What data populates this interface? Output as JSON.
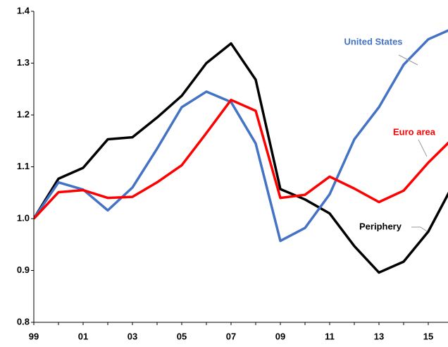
{
  "chart_data": {
    "type": "line",
    "categories": [
      "99",
      null,
      "01",
      null,
      "03",
      null,
      "05",
      null,
      "07",
      null,
      "09",
      null,
      "11",
      null,
      "13",
      null,
      "15",
      null
    ],
    "series": [
      {
        "name": "Periphery",
        "color": "#000000",
        "label_color": "#000000",
        "values": [
          1.0,
          1.077,
          1.098,
          1.153,
          1.157,
          1.195,
          1.237,
          1.3,
          1.338,
          1.268,
          1.057,
          1.037,
          1.01,
          0.947,
          0.896,
          0.917,
          0.975,
          1.065
        ]
      },
      {
        "name": "United States",
        "color": "#4472c4",
        "label_color": "#4472c4",
        "values": [
          1.0,
          1.07,
          1.056,
          1.016,
          1.06,
          1.135,
          1.215,
          1.245,
          1.225,
          1.145,
          0.957,
          0.982,
          1.047,
          1.153,
          1.215,
          1.297,
          1.346,
          1.367
        ]
      },
      {
        "name": "Euro area",
        "color": "#ff0000",
        "label_color": "#ff0000",
        "values": [
          1.0,
          1.051,
          1.055,
          1.04,
          1.042,
          1.07,
          1.103,
          1.165,
          1.229,
          1.208,
          1.04,
          1.046,
          1.081,
          1.058,
          1.032,
          1.054,
          1.108,
          1.155
        ]
      }
    ],
    "ylim": [
      0.8,
      1.4
    ],
    "yticks": [
      0.8,
      0.9,
      {
        "value": 1,
        "label": "1.0"
      },
      1.1,
      1.2,
      1.3,
      1.4
    ],
    "grid": false
  }
}
